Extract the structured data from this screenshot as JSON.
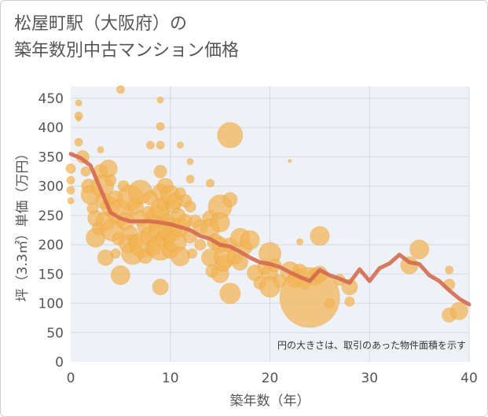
{
  "title_line1": "松屋町駅（大阪府）の",
  "title_line2": "築年数別中古マンション価格",
  "colors": {
    "bubble": "#f2b453",
    "bubble_stroke": "#e49c2c",
    "trend": "#d46a50",
    "grid": "#d4dbe3",
    "plot_bg": "#eef1f6",
    "text": "#555555"
  },
  "chart_data": {
    "type": "scatter",
    "xlabel": "築年数（年）",
    "ylabel": "坪（3.3㎡）単価（万円）",
    "xlim": [
      0,
      40
    ],
    "ylim": [
      0,
      470
    ],
    "xticks": [
      0,
      10,
      20,
      30,
      40
    ],
    "yticks": [
      0,
      50,
      100,
      150,
      200,
      250,
      300,
      350,
      400,
      450
    ],
    "grid": true,
    "note": "円の大きさは、取引のあった物件面積を示す",
    "bubbles": [
      {
        "x": 0,
        "y": 330,
        "r": 6
      },
      {
        "x": 0,
        "y": 310,
        "r": 5
      },
      {
        "x": 0,
        "y": 293,
        "r": 5
      },
      {
        "x": 0,
        "y": 275,
        "r": 4
      },
      {
        "x": 0.8,
        "y": 442,
        "r": 4
      },
      {
        "x": 0.8,
        "y": 420,
        "r": 5
      },
      {
        "x": 0.8,
        "y": 415,
        "r": 3
      },
      {
        "x": 0.8,
        "y": 375,
        "r": 5
      },
      {
        "x": 1.2,
        "y": 350,
        "r": 8
      },
      {
        "x": 1.5,
        "y": 325,
        "r": 6
      },
      {
        "x": 1.8,
        "y": 300,
        "r": 9
      },
      {
        "x": 2,
        "y": 285,
        "r": 12
      },
      {
        "x": 2.2,
        "y": 262,
        "r": 7
      },
      {
        "x": 2.5,
        "y": 245,
        "r": 10
      },
      {
        "x": 2.5,
        "y": 212,
        "r": 12
      },
      {
        "x": 2.8,
        "y": 228,
        "r": 8
      },
      {
        "x": 3,
        "y": 362,
        "r": 4
      },
      {
        "x": 3,
        "y": 325,
        "r": 9
      },
      {
        "x": 3.2,
        "y": 300,
        "r": 14
      },
      {
        "x": 3.3,
        "y": 275,
        "r": 10
      },
      {
        "x": 3.5,
        "y": 240,
        "r": 12
      },
      {
        "x": 3.5,
        "y": 178,
        "r": 10
      },
      {
        "x": 3.8,
        "y": 330,
        "r": 11
      },
      {
        "x": 4,
        "y": 310,
        "r": 7
      },
      {
        "x": 4,
        "y": 265,
        "r": 12
      },
      {
        "x": 4.2,
        "y": 225,
        "r": 14
      },
      {
        "x": 4.5,
        "y": 280,
        "r": 9
      },
      {
        "x": 4.5,
        "y": 185,
        "r": 6
      },
      {
        "x": 4.8,
        "y": 210,
        "r": 8
      },
      {
        "x": 5,
        "y": 465,
        "r": 5
      },
      {
        "x": 5,
        "y": 255,
        "r": 16
      },
      {
        "x": 5,
        "y": 148,
        "r": 12
      },
      {
        "x": 5.3,
        "y": 300,
        "r": 7
      },
      {
        "x": 5.5,
        "y": 240,
        "r": 11
      },
      {
        "x": 5.8,
        "y": 202,
        "r": 12
      },
      {
        "x": 6,
        "y": 280,
        "r": 16
      },
      {
        "x": 6,
        "y": 220,
        "r": 9
      },
      {
        "x": 6.2,
        "y": 185,
        "r": 14
      },
      {
        "x": 6.5,
        "y": 265,
        "r": 10
      },
      {
        "x": 6.5,
        "y": 205,
        "r": 9
      },
      {
        "x": 7,
        "y": 290,
        "r": 15
      },
      {
        "x": 7,
        "y": 245,
        "r": 10
      },
      {
        "x": 7.2,
        "y": 200,
        "r": 16
      },
      {
        "x": 7.5,
        "y": 230,
        "r": 10
      },
      {
        "x": 7.5,
        "y": 180,
        "r": 9
      },
      {
        "x": 7.8,
        "y": 255,
        "r": 8
      },
      {
        "x": 8,
        "y": 370,
        "r": 5
      },
      {
        "x": 8,
        "y": 280,
        "r": 9
      },
      {
        "x": 8,
        "y": 215,
        "r": 12
      },
      {
        "x": 8.3,
        "y": 195,
        "r": 10
      },
      {
        "x": 8.5,
        "y": 240,
        "r": 9
      },
      {
        "x": 8.8,
        "y": 250,
        "r": 14
      },
      {
        "x": 9,
        "y": 447,
        "r": 4
      },
      {
        "x": 9,
        "y": 402,
        "r": 5
      },
      {
        "x": 9,
        "y": 370,
        "r": 5
      },
      {
        "x": 9,
        "y": 325,
        "r": 8
      },
      {
        "x": 9,
        "y": 290,
        "r": 10
      },
      {
        "x": 9,
        "y": 262,
        "r": 12
      },
      {
        "x": 9,
        "y": 225,
        "r": 14
      },
      {
        "x": 9,
        "y": 195,
        "r": 16
      },
      {
        "x": 9,
        "y": 128,
        "r": 10
      },
      {
        "x": 9.3,
        "y": 270,
        "r": 8
      },
      {
        "x": 9.5,
        "y": 300,
        "r": 10
      },
      {
        "x": 9.5,
        "y": 210,
        "r": 12
      },
      {
        "x": 9.8,
        "y": 240,
        "r": 9
      },
      {
        "x": 10,
        "y": 285,
        "r": 12
      },
      {
        "x": 10,
        "y": 225,
        "r": 15
      },
      {
        "x": 10,
        "y": 190,
        "r": 10
      },
      {
        "x": 10.3,
        "y": 265,
        "r": 9
      },
      {
        "x": 10.5,
        "y": 275,
        "r": 10
      },
      {
        "x": 10.5,
        "y": 205,
        "r": 14
      },
      {
        "x": 10.8,
        "y": 250,
        "r": 9
      },
      {
        "x": 11,
        "y": 370,
        "r": 4
      },
      {
        "x": 11,
        "y": 288,
        "r": 7
      },
      {
        "x": 11,
        "y": 230,
        "r": 12
      },
      {
        "x": 11,
        "y": 180,
        "r": 12
      },
      {
        "x": 11.5,
        "y": 275,
        "r": 8
      },
      {
        "x": 11.5,
        "y": 240,
        "r": 9
      },
      {
        "x": 12,
        "y": 342,
        "r": 4
      },
      {
        "x": 12,
        "y": 312,
        "r": 5
      },
      {
        "x": 12,
        "y": 265,
        "r": 7
      },
      {
        "x": 12,
        "y": 215,
        "r": 9
      },
      {
        "x": 12.2,
        "y": 185,
        "r": 6
      },
      {
        "x": 12.5,
        "y": 240,
        "r": 8
      },
      {
        "x": 13,
        "y": 230,
        "r": 9
      },
      {
        "x": 13,
        "y": 200,
        "r": 7
      },
      {
        "x": 14,
        "y": 305,
        "r": 5
      },
      {
        "x": 14,
        "y": 245,
        "r": 10
      },
      {
        "x": 14,
        "y": 228,
        "r": 12
      },
      {
        "x": 14,
        "y": 178,
        "r": 11
      },
      {
        "x": 14.2,
        "y": 155,
        "r": 8
      },
      {
        "x": 14.5,
        "y": 205,
        "r": 10
      },
      {
        "x": 15,
        "y": 265,
        "r": 15
      },
      {
        "x": 15,
        "y": 238,
        "r": 12
      },
      {
        "x": 15,
        "y": 200,
        "r": 10
      },
      {
        "x": 15,
        "y": 150,
        "r": 11
      },
      {
        "x": 15.3,
        "y": 168,
        "r": 10
      },
      {
        "x": 15.5,
        "y": 180,
        "r": 14
      },
      {
        "x": 16,
        "y": 387,
        "r": 16
      },
      {
        "x": 16,
        "y": 277,
        "r": 9
      },
      {
        "x": 16,
        "y": 200,
        "r": 9
      },
      {
        "x": 16,
        "y": 117,
        "r": 13
      },
      {
        "x": 16.5,
        "y": 180,
        "r": 10
      },
      {
        "x": 17,
        "y": 212,
        "r": 12
      },
      {
        "x": 17,
        "y": 170,
        "r": 10
      },
      {
        "x": 17.5,
        "y": 195,
        "r": 9
      },
      {
        "x": 18,
        "y": 208,
        "r": 12
      },
      {
        "x": 18.5,
        "y": 152,
        "r": 10
      },
      {
        "x": 19,
        "y": 135,
        "r": 8
      },
      {
        "x": 19.5,
        "y": 162,
        "r": 9
      },
      {
        "x": 20,
        "y": 185,
        "r": 14
      },
      {
        "x": 20,
        "y": 152,
        "r": 10
      },
      {
        "x": 20,
        "y": 128,
        "r": 13
      },
      {
        "x": 20.5,
        "y": 165,
        "r": 8
      },
      {
        "x": 21,
        "y": 138,
        "r": 8
      },
      {
        "x": 22,
        "y": 343,
        "r": 2
      },
      {
        "x": 22,
        "y": 155,
        "r": 12
      },
      {
        "x": 22.5,
        "y": 140,
        "r": 10
      },
      {
        "x": 23,
        "y": 205,
        "r": 4
      },
      {
        "x": 23,
        "y": 155,
        "r": 9
      },
      {
        "x": 23.5,
        "y": 135,
        "r": 8
      },
      {
        "x": 24,
        "y": 110,
        "r": 38
      },
      {
        "x": 24.5,
        "y": 145,
        "r": 10
      },
      {
        "x": 25,
        "y": 215,
        "r": 12
      },
      {
        "x": 25,
        "y": 150,
        "r": 10
      },
      {
        "x": 26,
        "y": 100,
        "r": 6
      },
      {
        "x": 27,
        "y": 140,
        "r": 7
      },
      {
        "x": 28,
        "y": 128,
        "r": 10
      },
      {
        "x": 28,
        "y": 103,
        "r": 6
      },
      {
        "x": 34,
        "y": 165,
        "r": 11
      },
      {
        "x": 35,
        "y": 192,
        "r": 12
      },
      {
        "x": 38,
        "y": 157,
        "r": 5
      },
      {
        "x": 38,
        "y": 132,
        "r": 7
      },
      {
        "x": 38,
        "y": 80,
        "r": 9
      },
      {
        "x": 39,
        "y": 87,
        "r": 11
      }
    ],
    "series": [
      {
        "values": [
          [
            0,
            355
          ],
          [
            1,
            348
          ],
          [
            2,
            335
          ],
          [
            3,
            295
          ],
          [
            4,
            255
          ],
          [
            5,
            245
          ],
          [
            6,
            240
          ],
          [
            7,
            240
          ],
          [
            8,
            240
          ],
          [
            9,
            238
          ],
          [
            10,
            235
          ],
          [
            11,
            230
          ],
          [
            12,
            225
          ],
          [
            13,
            215
          ],
          [
            14,
            210
          ],
          [
            15,
            200
          ],
          [
            16,
            197
          ],
          [
            17,
            188
          ],
          [
            18,
            178
          ],
          [
            19,
            170
          ],
          [
            20,
            167
          ],
          [
            21,
            162
          ],
          [
            22,
            153
          ],
          [
            23,
            145
          ],
          [
            24,
            138
          ],
          [
            25,
            157
          ],
          [
            26,
            148
          ],
          [
            27,
            142
          ],
          [
            28,
            135
          ],
          [
            29,
            158
          ],
          [
            30,
            138
          ],
          [
            31,
            160
          ],
          [
            32,
            168
          ],
          [
            33,
            183
          ],
          [
            34,
            170
          ],
          [
            35,
            167
          ],
          [
            36,
            148
          ],
          [
            37,
            138
          ],
          [
            38,
            122
          ],
          [
            39,
            108
          ],
          [
            40,
            98
          ]
        ]
      }
    ]
  }
}
